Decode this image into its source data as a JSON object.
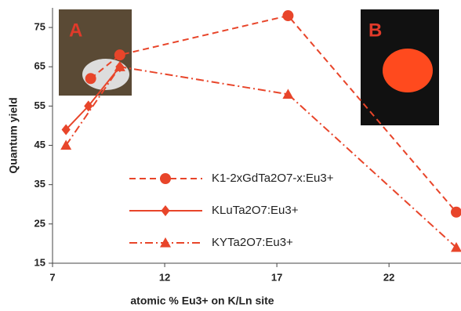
{
  "chart_data": {
    "type": "line",
    "x_label": "atomic % Eu3+ on K/Ln site",
    "y_label": "Quantum yield",
    "xlim": [
      7,
      25
    ],
    "xticks": [
      7,
      12,
      17,
      22
    ],
    "ylim": [
      15,
      80
    ],
    "yticks": [
      15,
      25,
      35,
      45,
      55,
      65,
      75
    ],
    "insets": [
      "A",
      "B"
    ],
    "series": [
      {
        "name": "K1-2xGdTa2O7-x:Eu3+",
        "color": "#e8452a",
        "marker": "circle",
        "dash": "dashed",
        "x": [
          8.7,
          10,
          17.5,
          25
        ],
        "values": [
          62,
          68,
          78,
          28
        ]
      },
      {
        "name": "KLuTa2O7:Eu3+",
        "color": "#e8452a",
        "marker": "diamond",
        "dash": "solid",
        "x": [
          7.6,
          8.6,
          10
        ],
        "values": [
          49,
          55,
          65
        ]
      },
      {
        "name": "KYTa2O7:Eu3+",
        "color": "#e8452a",
        "marker": "triangle",
        "dash": "dashdot",
        "x": [
          7.6,
          10,
          17.5,
          25
        ],
        "values": [
          45,
          65,
          58,
          19
        ]
      }
    ]
  }
}
